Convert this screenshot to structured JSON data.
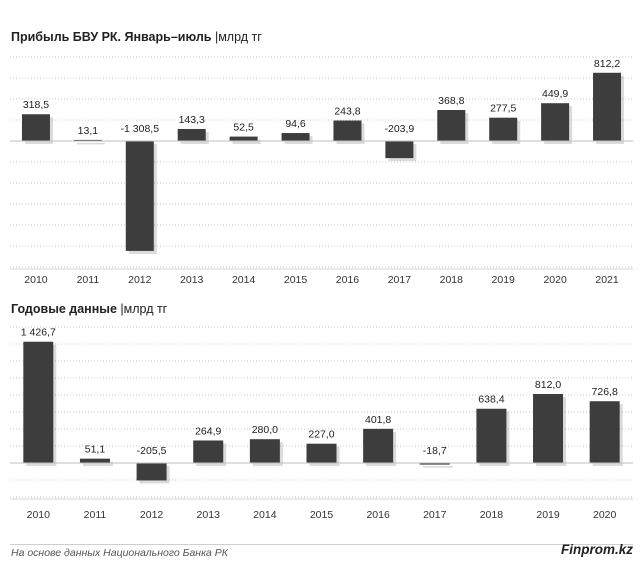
{
  "chart_data": [
    {
      "type": "bar",
      "title": "Прибыль БВУ РК. Январь–июль",
      "unit": "млрд тг",
      "categories": [
        "2010",
        "2011",
        "2012",
        "2013",
        "2014",
        "2015",
        "2016",
        "2017",
        "2018",
        "2019",
        "2020",
        "2021"
      ],
      "values": [
        318.5,
        13.1,
        -1308.5,
        143.3,
        52.5,
        94.6,
        243.8,
        -203.9,
        368.8,
        277.5,
        449.9,
        812.2
      ],
      "value_labels": [
        "318,5",
        "13,1",
        "-1 308,5",
        "143,3",
        "52,5",
        "94,6",
        "243,8",
        "-203,9",
        "368,8",
        "277,5",
        "449,9",
        "812,2"
      ],
      "ylim": [
        -1500,
        1000
      ],
      "grid": true,
      "bar_color": "#3d3d3d"
    },
    {
      "type": "bar",
      "title": "Годовые данные",
      "unit": "млрд тг",
      "categories": [
        "2010",
        "2011",
        "2012",
        "2013",
        "2014",
        "2015",
        "2016",
        "2017",
        "2018",
        "2019",
        "2020"
      ],
      "values": [
        1426.7,
        51.1,
        -205.5,
        264.9,
        280.0,
        227.0,
        401.8,
        -18.7,
        638.4,
        812.0,
        726.8
      ],
      "value_labels": [
        "1 426,7",
        "51,1",
        "-205,5",
        "264,9",
        "280,0",
        "227,0",
        "401,8",
        "-18,7",
        "638,4",
        "812,0",
        "726,8"
      ],
      "ylim": [
        -400,
        1600
      ],
      "grid": true,
      "bar_color": "#3d3d3d"
    }
  ],
  "footer": {
    "source": "На основе данных Национального Банка РК",
    "brand": "Finprom.kz"
  }
}
